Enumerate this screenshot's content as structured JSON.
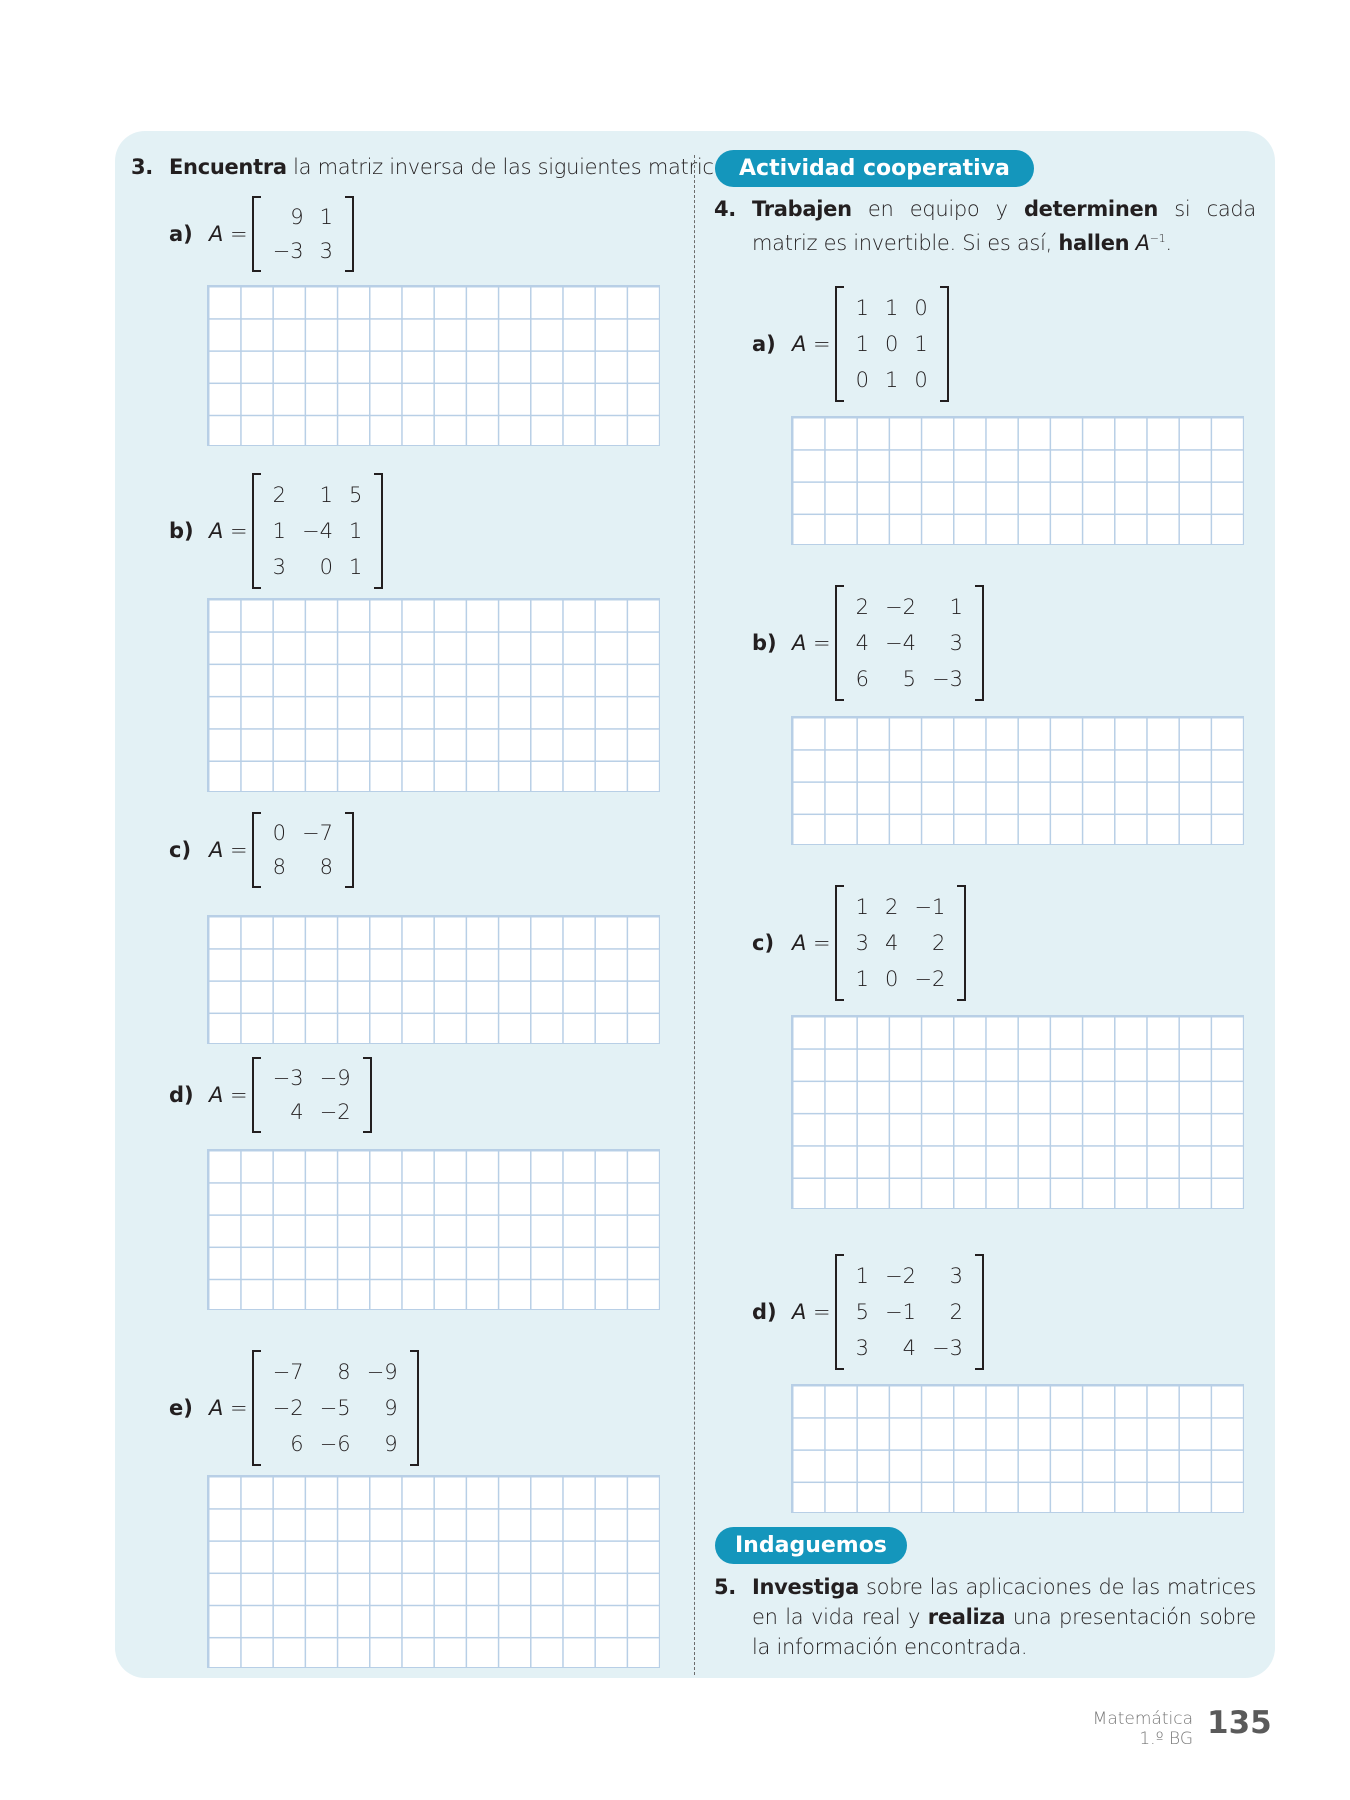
{
  "exercise3": {
    "number": "3.",
    "verb": "Encuentra",
    "rest": " la matriz inversa de las siguientes matrices.",
    "items": [
      {
        "label": "a)",
        "lhs": "A",
        "eq": " =",
        "matrix": [
          [
            "9",
            "1"
          ],
          [
            "−3",
            "3"
          ]
        ]
      },
      {
        "label": "b)",
        "lhs": "A",
        "eq": " =",
        "matrix": [
          [
            "2",
            "1",
            "5"
          ],
          [
            "1",
            "−4",
            "1"
          ],
          [
            "3",
            "0",
            "1"
          ]
        ]
      },
      {
        "label": "c)",
        "lhs": "A",
        "eq": " =",
        "matrix": [
          [
            "0",
            "−7"
          ],
          [
            "8",
            "8"
          ]
        ]
      },
      {
        "label": "d)",
        "lhs": "A",
        "eq": " =",
        "matrix": [
          [
            "−3",
            "−9"
          ],
          [
            "4",
            "−2"
          ]
        ]
      },
      {
        "label": "e)",
        "lhs": "A",
        "eq": " =",
        "matrix": [
          [
            "−7",
            "8",
            "−9"
          ],
          [
            "−2",
            "−5",
            "9"
          ],
          [
            "6",
            "−6",
            "9"
          ]
        ]
      }
    ]
  },
  "badge_cooperativa": "Actividad cooperativa",
  "exercise4": {
    "number": "4.",
    "w1": "Trabajen",
    "t1": " en equipo y ",
    "w2": "determinen",
    "t2": " si cada matriz es invertible. Si es así, ",
    "w3": "hallen",
    "t3": " A",
    "sup": "−1",
    "t4": ".",
    "items": [
      {
        "label": "a)",
        "lhs": "A",
        "eq": " =",
        "matrix": [
          [
            "1",
            "1",
            "0"
          ],
          [
            "1",
            "0",
            "1"
          ],
          [
            "0",
            "1",
            "0"
          ]
        ]
      },
      {
        "label": "b)",
        "lhs": "A",
        "eq": " =",
        "matrix": [
          [
            "2",
            "−2",
            "1"
          ],
          [
            "4",
            "−4",
            "3"
          ],
          [
            "6",
            "5",
            "−3"
          ]
        ]
      },
      {
        "label": "c)",
        "lhs": "A",
        "eq": " =",
        "matrix": [
          [
            "1",
            "2",
            "−1"
          ],
          [
            "3",
            "4",
            "2"
          ],
          [
            "1",
            "0",
            "−2"
          ]
        ]
      },
      {
        "label": "d)",
        "lhs": "A",
        "eq": " =",
        "matrix": [
          [
            "1",
            "−2",
            "3"
          ],
          [
            "5",
            "−1",
            "2"
          ],
          [
            "3",
            "4",
            "−3"
          ]
        ]
      }
    ]
  },
  "badge_indaguemos": "Indaguemos",
  "exercise5": {
    "number": "5.",
    "w1": "Investiga",
    "t1": " sobre las aplicaciones de las matrices en la vida real y ",
    "w2": "realiza",
    "t2": " una presentación sobre la in­formación encontrada."
  },
  "footer": {
    "subject": "Matemática",
    "grade": "1.º BG",
    "page": "135"
  },
  "colors": {
    "panel": "#e3f1f5",
    "badge": "#1496bc",
    "grid": "#b8cfe6"
  }
}
